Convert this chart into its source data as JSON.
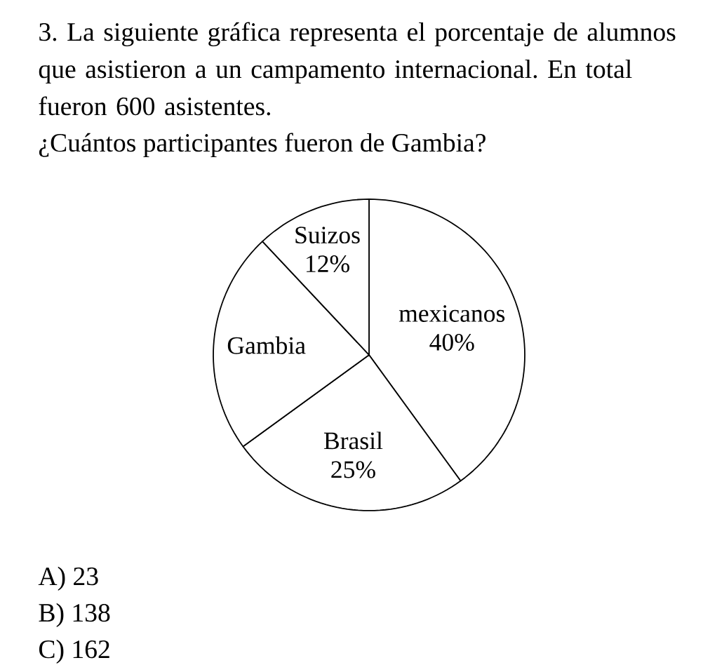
{
  "chart_data": {
    "type": "pie",
    "title": "3. La siguiente gráfica representa el porcentaje de alumnos que asistieron a un campamento internacional. En total fueron 600 asistentes.",
    "subtitle": "¿Cuántos participantes fueron de Gambia?",
    "categories": [
      "mexicanos",
      "Brasil",
      "Gambia",
      "Suizos"
    ],
    "values": [
      40,
      25,
      23,
      12
    ],
    "value_labels": [
      "40%",
      "25%",
      null,
      "12%"
    ],
    "colors": [
      "#ffffff",
      "#ffffff",
      "#ffffff",
      "#ffffff"
    ],
    "annotations": [
      "A) 23",
      "B) 138",
      "C) 162"
    ]
  }
}
